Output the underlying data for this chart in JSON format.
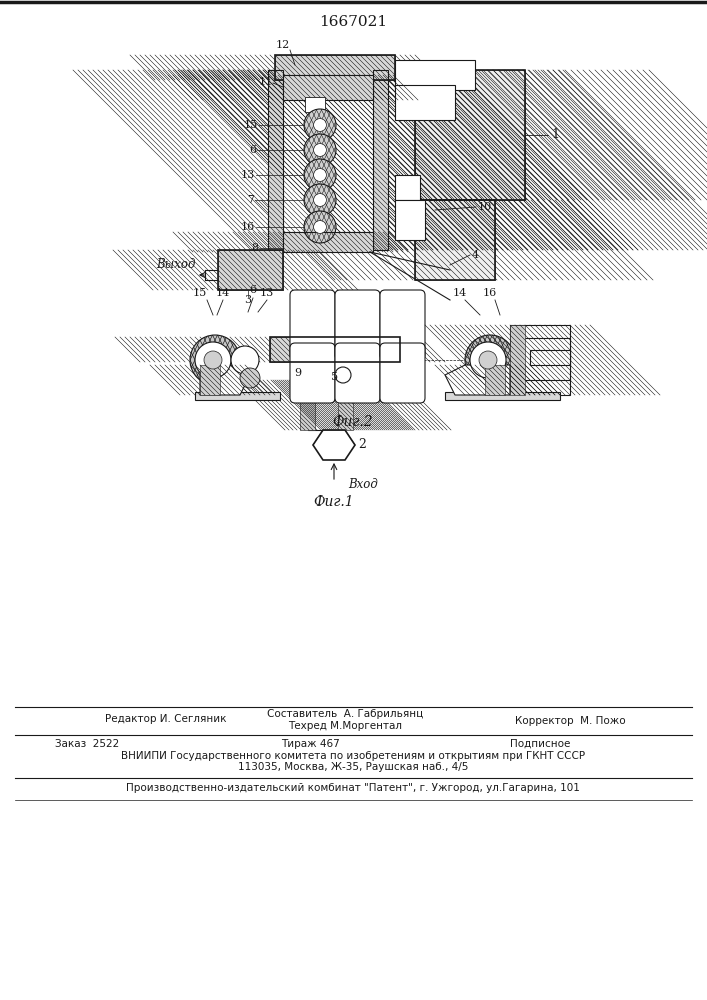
{
  "patent_number": "1667021",
  "fig1_caption": "Фиг.1",
  "fig2_caption": "Фиг.2",
  "vyhod_label": "Выход",
  "vhod_label": "Вход",
  "editor_line": "Редактор И. Сегляник",
  "sostavitel_line": "Составитель  А. Габрильянц",
  "tehred_line": "Техред М.Моргентал",
  "korrektor_line": "Корректор  М. Пожо",
  "zakaz_line": "Заказ  2522",
  "tirazh_line": "Тираж 467",
  "podpisnoe_line": "Подписное",
  "vniipи_line": "ВНИИПИ Государственного комитета по изобретениям и открытиям при ГКНТ СССР",
  "address_line": "113035, Москва, Ж-35, Раушская наб., 4/5",
  "kombinat_line": "Производственно-издательский комбинат \"Патент\", г. Ужгород, ул.Гагарина, 101",
  "bg_color": "#ffffff",
  "line_color": "#1a1a1a"
}
